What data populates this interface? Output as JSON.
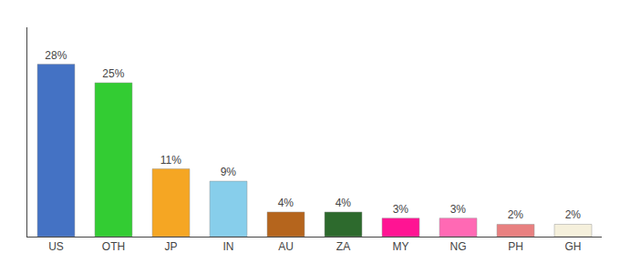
{
  "chart_data": {
    "type": "bar",
    "categories": [
      "US",
      "OTH",
      "JP",
      "IN",
      "AU",
      "ZA",
      "MY",
      "NG",
      "PH",
      "GH"
    ],
    "values": [
      28,
      25,
      11,
      9,
      4,
      4,
      3,
      3,
      2,
      2
    ],
    "value_labels": [
      "28%",
      "25%",
      "11%",
      "9%",
      "4%",
      "4%",
      "3%",
      "3%",
      "2%",
      "2%"
    ],
    "colors": [
      "#4472c4",
      "#33cc33",
      "#f5a623",
      "#87ceeb",
      "#b5651d",
      "#2d6a2d",
      "#ff1493",
      "#ff69b4",
      "#e88080",
      "#f5f0dc"
    ],
    "ylim": [
      0,
      34
    ],
    "data_labels": true,
    "tick_labels": "x",
    "grid": false
  }
}
